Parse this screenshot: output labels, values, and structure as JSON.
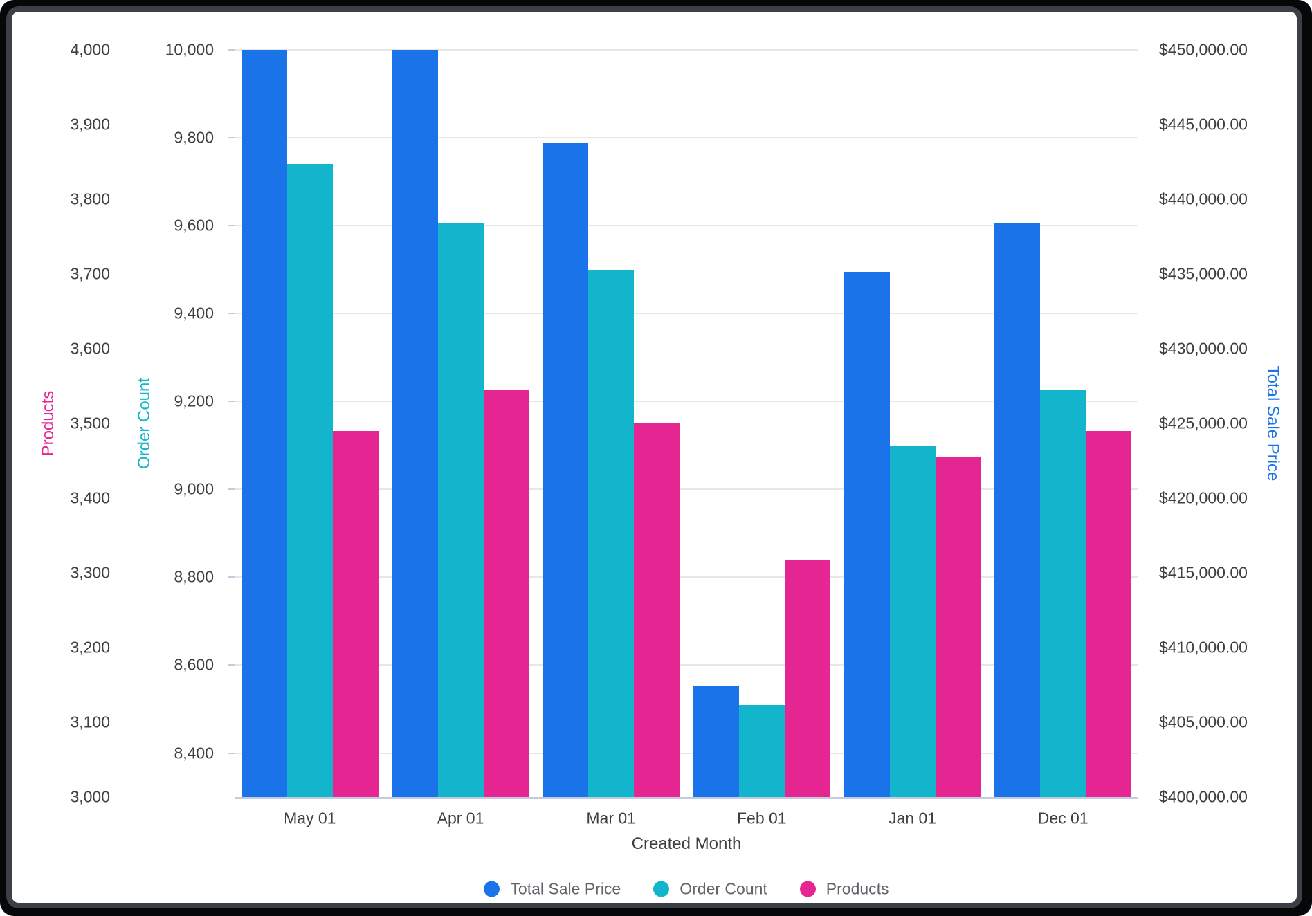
{
  "chart_data": {
    "type": "bar",
    "title": "",
    "x_axis": {
      "label": "Created Month",
      "categories": [
        "May 01",
        "Apr 01",
        "Mar 01",
        "Feb 01",
        "Jan 01",
        "Dec 01"
      ]
    },
    "axes": {
      "products": {
        "title": "Products",
        "color": "#E52592",
        "side": "left-outer",
        "min": 3000,
        "max": 4000,
        "tick_values": [
          3000,
          3100,
          3200,
          3300,
          3400,
          3500,
          3600,
          3700,
          3800,
          3900,
          4000
        ],
        "tick_labels": [
          "3,000",
          "3,100",
          "3,200",
          "3,300",
          "3,400",
          "3,500",
          "3,600",
          "3,700",
          "3,800",
          "3,900",
          "4,000"
        ]
      },
      "order_count": {
        "title": "Order Count",
        "color": "#12B5CB",
        "side": "left-inner",
        "min": 8300,
        "max": 10000,
        "tick_values": [
          8400,
          8600,
          8800,
          9000,
          9200,
          9400,
          9600,
          9800,
          10000
        ],
        "tick_labels": [
          "8,400",
          "8,600",
          "8,800",
          "9,000",
          "9,200",
          "9,400",
          "9,600",
          "9,800",
          "10,000"
        ]
      },
      "total_sale_price": {
        "title": "Total Sale Price",
        "color": "#1A73E8",
        "side": "right",
        "min": 400000,
        "max": 450000,
        "tick_values": [
          400000,
          405000,
          410000,
          415000,
          420000,
          425000,
          430000,
          435000,
          440000,
          445000,
          450000
        ],
        "tick_labels": [
          "$400,000.00",
          "$405,000.00",
          "$410,000.00",
          "$415,000.00",
          "$420,000.00",
          "$425,000.00",
          "$430,000.00",
          "$435,000.00",
          "$440,000.00",
          "$445,000.00",
          "$450,000.00"
        ]
      }
    },
    "series": [
      {
        "name": "Total Sale Price",
        "axis": "total_sale_price",
        "color": "#1A73E8",
        "values": [
          450000,
          450000,
          443800,
          407450,
          435150,
          438400
        ]
      },
      {
        "name": "Order Count",
        "axis": "order_count",
        "color": "#12B5CB",
        "values": [
          9740,
          9605,
          9500,
          8510,
          9100,
          9225
        ]
      },
      {
        "name": "Products",
        "axis": "products",
        "color": "#E52592",
        "values": [
          3490,
          3545,
          3500,
          3318,
          3455,
          3490
        ]
      }
    ],
    "legend": [
      {
        "label": "Total Sale Price",
        "color": "#1A73E8"
      },
      {
        "label": "Order Count",
        "color": "#12B5CB"
      },
      {
        "label": "Products",
        "color": "#E52592"
      }
    ],
    "gridlines_from_axis": "order_count",
    "layout_hints": {
      "legend_position": "bottom",
      "grid": "on"
    }
  }
}
